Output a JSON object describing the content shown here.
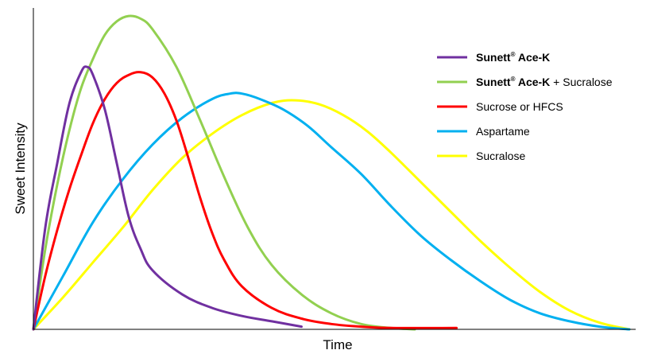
{
  "chart_data": {
    "type": "line",
    "xlabel": "Time",
    "ylabel": "Sweet Intensity",
    "grid": false,
    "legend_position": "top-right",
    "x_ticks_shown": false,
    "y_ticks_shown": false,
    "series": [
      {
        "name": "Sunett® Ace-K",
        "brand": "Sunett",
        "mark": "®",
        "product": "Ace-K",
        "suffix": "",
        "color": "#7030A0",
        "points": [
          [
            0,
            0
          ],
          [
            2,
            38
          ],
          [
            4,
            62
          ],
          [
            6,
            84
          ],
          [
            8,
            96
          ],
          [
            9,
            98
          ],
          [
            10,
            95
          ],
          [
            12,
            82
          ],
          [
            14,
            62
          ],
          [
            16,
            42
          ],
          [
            18,
            30
          ],
          [
            20,
            22
          ],
          [
            25,
            13
          ],
          [
            30,
            8
          ],
          [
            35,
            5
          ],
          [
            40,
            3
          ],
          [
            45,
            1
          ]
        ]
      },
      {
        "name": "Sunett® Ace-K + Sucralose",
        "brand": "Sunett",
        "mark": "®",
        "product": "Ace-K",
        "suffix": " + Sucralose",
        "color": "#92D050",
        "points": [
          [
            0,
            0
          ],
          [
            2,
            30
          ],
          [
            4,
            54
          ],
          [
            6,
            74
          ],
          [
            8,
            90
          ],
          [
            10,
            101
          ],
          [
            12,
            110
          ],
          [
            14,
            115
          ],
          [
            16,
            117
          ],
          [
            18,
            116
          ],
          [
            20,
            112
          ],
          [
            24,
            98
          ],
          [
            28,
            78
          ],
          [
            32,
            57
          ],
          [
            36,
            38
          ],
          [
            40,
            24
          ],
          [
            45,
            13
          ],
          [
            50,
            6
          ],
          [
            55,
            2
          ],
          [
            60,
            0.5
          ],
          [
            64,
            0
          ]
        ]
      },
      {
        "name": "Sucrose or HFCS",
        "color": "#FF0000",
        "points": [
          [
            0,
            0
          ],
          [
            2,
            20
          ],
          [
            4,
            37
          ],
          [
            6,
            52
          ],
          [
            8,
            65
          ],
          [
            10,
            77
          ],
          [
            12,
            86
          ],
          [
            14,
            92
          ],
          [
            16,
            95
          ],
          [
            18,
            96
          ],
          [
            20,
            94
          ],
          [
            22,
            88
          ],
          [
            24,
            78
          ],
          [
            26,
            64
          ],
          [
            28,
            49
          ],
          [
            30,
            36
          ],
          [
            32,
            26
          ],
          [
            35,
            16
          ],
          [
            40,
            8
          ],
          [
            45,
            4
          ],
          [
            50,
            2
          ],
          [
            55,
            1
          ],
          [
            60,
            0.5
          ],
          [
            71,
            0.5
          ]
        ]
      },
      {
        "name": "Aspartame",
        "color": "#00B0F0",
        "points": [
          [
            0,
            0
          ],
          [
            5,
            20
          ],
          [
            10,
            40
          ],
          [
            15,
            56
          ],
          [
            20,
            69
          ],
          [
            25,
            79
          ],
          [
            30,
            86
          ],
          [
            33,
            88
          ],
          [
            35,
            88
          ],
          [
            38,
            86
          ],
          [
            42,
            82
          ],
          [
            46,
            76
          ],
          [
            50,
            68
          ],
          [
            55,
            58
          ],
          [
            60,
            46
          ],
          [
            65,
            35
          ],
          [
            70,
            26
          ],
          [
            75,
            18
          ],
          [
            80,
            11
          ],
          [
            85,
            6
          ],
          [
            90,
            3
          ],
          [
            95,
            1
          ],
          [
            100,
            0
          ]
        ]
      },
      {
        "name": "Sucralose",
        "color": "#FFFF00",
        "points": [
          [
            0,
            0
          ],
          [
            5,
            12
          ],
          [
            10,
            25
          ],
          [
            15,
            38
          ],
          [
            20,
            52
          ],
          [
            25,
            64
          ],
          [
            30,
            73
          ],
          [
            35,
            80
          ],
          [
            40,
            84.5
          ],
          [
            44,
            85.5
          ],
          [
            48,
            84
          ],
          [
            52,
            80
          ],
          [
            56,
            74
          ],
          [
            60,
            66
          ],
          [
            65,
            55
          ],
          [
            70,
            44
          ],
          [
            75,
            33
          ],
          [
            80,
            23
          ],
          [
            85,
            14
          ],
          [
            90,
            7
          ],
          [
            95,
            2.5
          ],
          [
            100,
            0
          ]
        ]
      }
    ]
  }
}
